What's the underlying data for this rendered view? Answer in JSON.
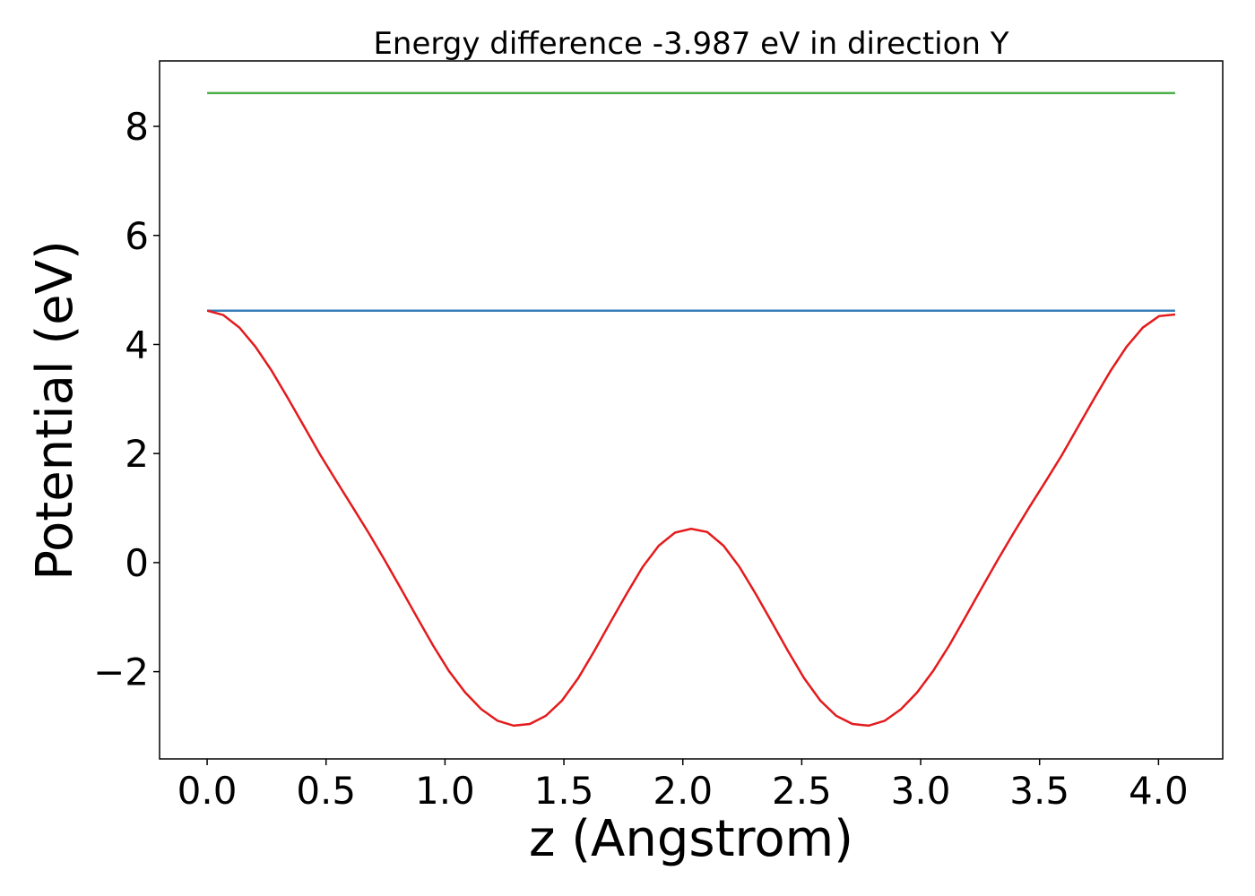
{
  "chart_data": {
    "type": "line",
    "title": "Energy difference -3.987 eV in direction Y",
    "xlabel": "z (Angstrom)",
    "ylabel": "Potential (eV)",
    "xlim": [
      -0.2,
      4.27
    ],
    "ylim": [
      -3.6,
      9.2
    ],
    "xticks": [
      0.0,
      0.5,
      1.0,
      1.5,
      2.0,
      2.5,
      3.0,
      3.5,
      4.0
    ],
    "xtick_labels": [
      "0.0",
      "0.5",
      "1.0",
      "1.5",
      "2.0",
      "2.5",
      "3.0",
      "3.5",
      "4.0"
    ],
    "yticks": [
      -2,
      0,
      2,
      4,
      6,
      8
    ],
    "ytick_labels": [
      "−2",
      "0",
      "2",
      "4",
      "6",
      "8"
    ],
    "grid": false,
    "series": [
      {
        "color": "#4daf4a",
        "x": [
          0.0,
          4.07
        ],
        "y": [
          8.61,
          8.61
        ]
      },
      {
        "color": "#377eb8",
        "x": [
          0.0,
          4.07
        ],
        "y": [
          4.62,
          4.62
        ]
      },
      {
        "color": "#e41a1c",
        "x": [
          0.0,
          0.068,
          0.136,
          0.203,
          0.271,
          0.339,
          0.407,
          0.475,
          0.543,
          0.61,
          0.678,
          0.746,
          0.814,
          0.882,
          0.95,
          1.017,
          1.085,
          1.153,
          1.221,
          1.289,
          1.357,
          1.424,
          1.492,
          1.56,
          1.628,
          1.696,
          1.764,
          1.831,
          1.899,
          1.967,
          2.035,
          2.103,
          2.171,
          2.238,
          2.306,
          2.374,
          2.442,
          2.51,
          2.578,
          2.645,
          2.713,
          2.781,
          2.849,
          2.917,
          2.985,
          3.052,
          3.12,
          3.188,
          3.256,
          3.324,
          3.392,
          3.459,
          3.527,
          3.595,
          3.663,
          3.731,
          3.799,
          3.866,
          3.934,
          4.002,
          4.07
        ],
        "y": [
          4.62,
          4.54,
          4.31,
          3.96,
          3.52,
          3.02,
          2.5,
          1.98,
          1.5,
          1.03,
          0.55,
          0.05,
          -0.47,
          -1.0,
          -1.52,
          -1.99,
          -2.38,
          -2.69,
          -2.9,
          -2.99,
          -2.96,
          -2.81,
          -2.53,
          -2.12,
          -1.62,
          -1.09,
          -0.57,
          -0.08,
          0.31,
          0.55,
          0.62,
          0.56,
          0.31,
          -0.08,
          -0.57,
          -1.09,
          -1.62,
          -2.12,
          -2.53,
          -2.81,
          -2.96,
          -2.99,
          -2.9,
          -2.69,
          -2.38,
          -1.99,
          -1.52,
          -1.0,
          -0.47,
          0.05,
          0.55,
          1.03,
          1.5,
          1.98,
          2.5,
          3.02,
          3.52,
          3.96,
          4.31,
          4.52,
          4.55
        ]
      }
    ]
  }
}
